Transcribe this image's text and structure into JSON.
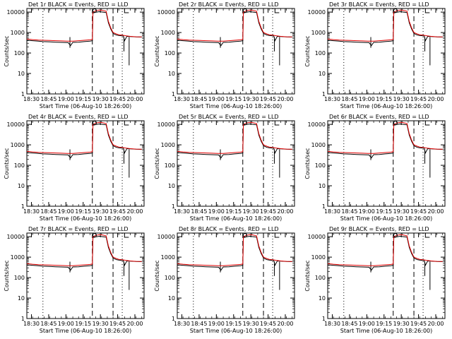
{
  "chart_data": [
    {
      "type": "line",
      "title": "Det 1r BLACK = Events, RED = LLD"
    },
    {
      "type": "line",
      "title": "Det 2r BLACK = Events, RED = LLD"
    },
    {
      "type": "line",
      "title": "Det 3r BLACK = Events, RED = LLD"
    },
    {
      "type": "line",
      "title": "Det 4r BLACK = Events, RED = LLD"
    },
    {
      "type": "line",
      "title": "Det 5r BLACK = Events, RED = LLD"
    },
    {
      "type": "line",
      "title": "Det 6r BLACK = Events, RED = LLD"
    },
    {
      "type": "line",
      "title": "Det 7r BLACK = Events, RED = LLD"
    },
    {
      "type": "line",
      "title": "Det 8r BLACK = Events, RED = LLD"
    },
    {
      "type": "line",
      "title": "Det 9r BLACK = Events, RED = LLD"
    }
  ],
  "shared": {
    "xlabel": "Start Time (06-Aug-10 18:26:00)",
    "ylabel": "Counts/sec",
    "xticks": [
      "18:30",
      "18:45",
      "19:00",
      "19:15",
      "19:30",
      "19:45",
      "20:00"
    ],
    "xtick_minutes": [
      4,
      19,
      34,
      49,
      64,
      79,
      94
    ],
    "xlim_minutes": [
      0,
      102
    ],
    "yticks": [
      "1",
      "10",
      "100",
      "1000",
      "10000"
    ],
    "ytick_values": [
      1,
      10,
      100,
      1000,
      10000
    ],
    "ylim": [
      1,
      15000
    ],
    "y_scale": "log",
    "dotted_vlines_minutes": [
      14,
      83
    ],
    "dashed_vlines_minutes": [
      57,
      75
    ],
    "marker_O_minute": 59,
    "marker_L_minute": 85,
    "colors": {
      "events": "#000000",
      "lld": "#e00000",
      "axes": "#000000"
    },
    "events_series": {
      "name": "Events",
      "x": [
        0,
        5,
        10,
        14,
        20,
        25,
        30,
        36,
        38,
        40,
        45,
        50,
        55,
        57,
        57.5,
        60,
        63,
        66,
        69,
        71,
        73,
        75,
        78,
        80,
        84,
        85,
        87,
        90,
        95,
        100
      ],
      "y": [
        420,
        400,
        380,
        360,
        350,
        340,
        330,
        320,
        230,
        330,
        340,
        360,
        380,
        400,
        9000,
        9800,
        10500,
        10000,
        9500,
        3000,
        1500,
        900,
        750,
        720,
        680,
        400,
        650,
        640,
        610,
        600
      ]
    },
    "lld_series": {
      "name": "LLD",
      "x": [
        0,
        5,
        10,
        14,
        20,
        25,
        30,
        35,
        40,
        45,
        50,
        55,
        57,
        57.5,
        60,
        63,
        66,
        69,
        71,
        73,
        75,
        78,
        80,
        84,
        86,
        90,
        95,
        100
      ],
      "y": [
        480,
        450,
        430,
        420,
        410,
        400,
        390,
        380,
        380,
        400,
        420,
        440,
        460,
        10000,
        11500,
        12500,
        12000,
        11000,
        3500,
        1700,
        1000,
        850,
        780,
        730,
        700,
        650,
        620,
        610
      ]
    },
    "events_spikes": [
      {
        "x": 37.5,
        "ylow": 180
      },
      {
        "x": 84.5,
        "ylow": 120
      },
      {
        "x": 89,
        "ylow": 25
      }
    ]
  }
}
